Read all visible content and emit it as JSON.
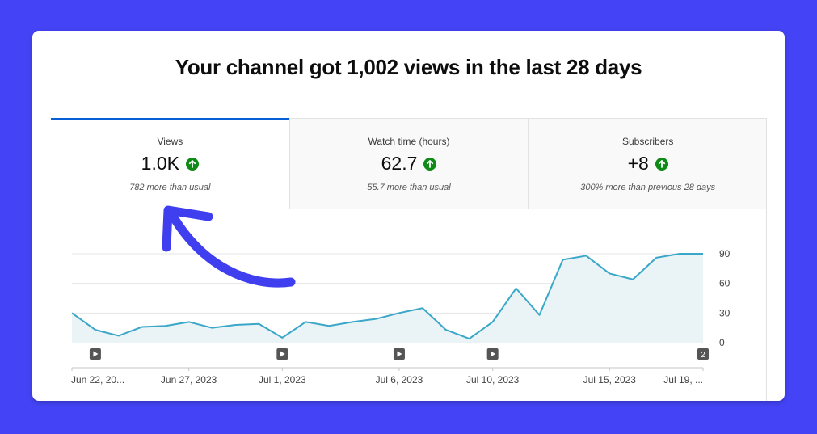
{
  "headline": "Your channel got 1,002 views in the last 28 days",
  "colors": {
    "background": "#4444f6",
    "accent": "#065fd4",
    "line": "#3aa7c8",
    "fill": "#eaf4f6",
    "up": "#0e8a16",
    "arrow": "#3f3ff0"
  },
  "tabs": [
    {
      "label": "Views",
      "value": "1.0K",
      "trend_icon": "arrow-up-icon",
      "note": "782 more than usual",
      "active": true
    },
    {
      "label": "Watch time (hours)",
      "value": "62.7",
      "trend_icon": "arrow-up-icon",
      "note": "55.7 more than usual",
      "active": false
    },
    {
      "label": "Subscribers",
      "value": "+8",
      "trend_icon": "arrow-up-icon",
      "note": "300% more than previous 28 days",
      "active": false
    }
  ],
  "chart_data": {
    "type": "area",
    "x": [
      "Jun 22",
      "Jun 23",
      "Jun 24",
      "Jun 25",
      "Jun 26",
      "Jun 27",
      "Jun 28",
      "Jun 29",
      "Jun 30",
      "Jul 1",
      "Jul 2",
      "Jul 3",
      "Jul 4",
      "Jul 5",
      "Jul 6",
      "Jul 7",
      "Jul 8",
      "Jul 9",
      "Jul 10",
      "Jul 11",
      "Jul 12",
      "Jul 13",
      "Jul 14",
      "Jul 15",
      "Jul 16",
      "Jul 17",
      "Jul 18",
      "Jul 19"
    ],
    "values": [
      30,
      13,
      7,
      16,
      17,
      21,
      15,
      18,
      19,
      5,
      21,
      17,
      21,
      24,
      30,
      35,
      13,
      4,
      21,
      55,
      28,
      84,
      88,
      70,
      64,
      86,
      90,
      90
    ],
    "ylim": [
      0,
      90
    ],
    "yticks": [
      "0",
      "30",
      "60",
      "90"
    ],
    "xtick_labels": [
      "Jun 22, 20...",
      "Jun 27, 2023",
      "Jul 1, 2023",
      "Jul 6, 2023",
      "Jul 10, 2023",
      "Jul 15, 2023",
      "Jul 19, ..."
    ],
    "xtick_indices": [
      0,
      5,
      9,
      14,
      18,
      23,
      27
    ],
    "markers": [
      {
        "index": 1,
        "icon": "play-icon"
      },
      {
        "index": 9,
        "icon": "play-icon"
      },
      {
        "index": 14,
        "icon": "play-icon"
      },
      {
        "index": 18,
        "icon": "play-icon"
      },
      {
        "index": 27,
        "label": "2"
      }
    ],
    "grid": true,
    "legend": "none"
  }
}
